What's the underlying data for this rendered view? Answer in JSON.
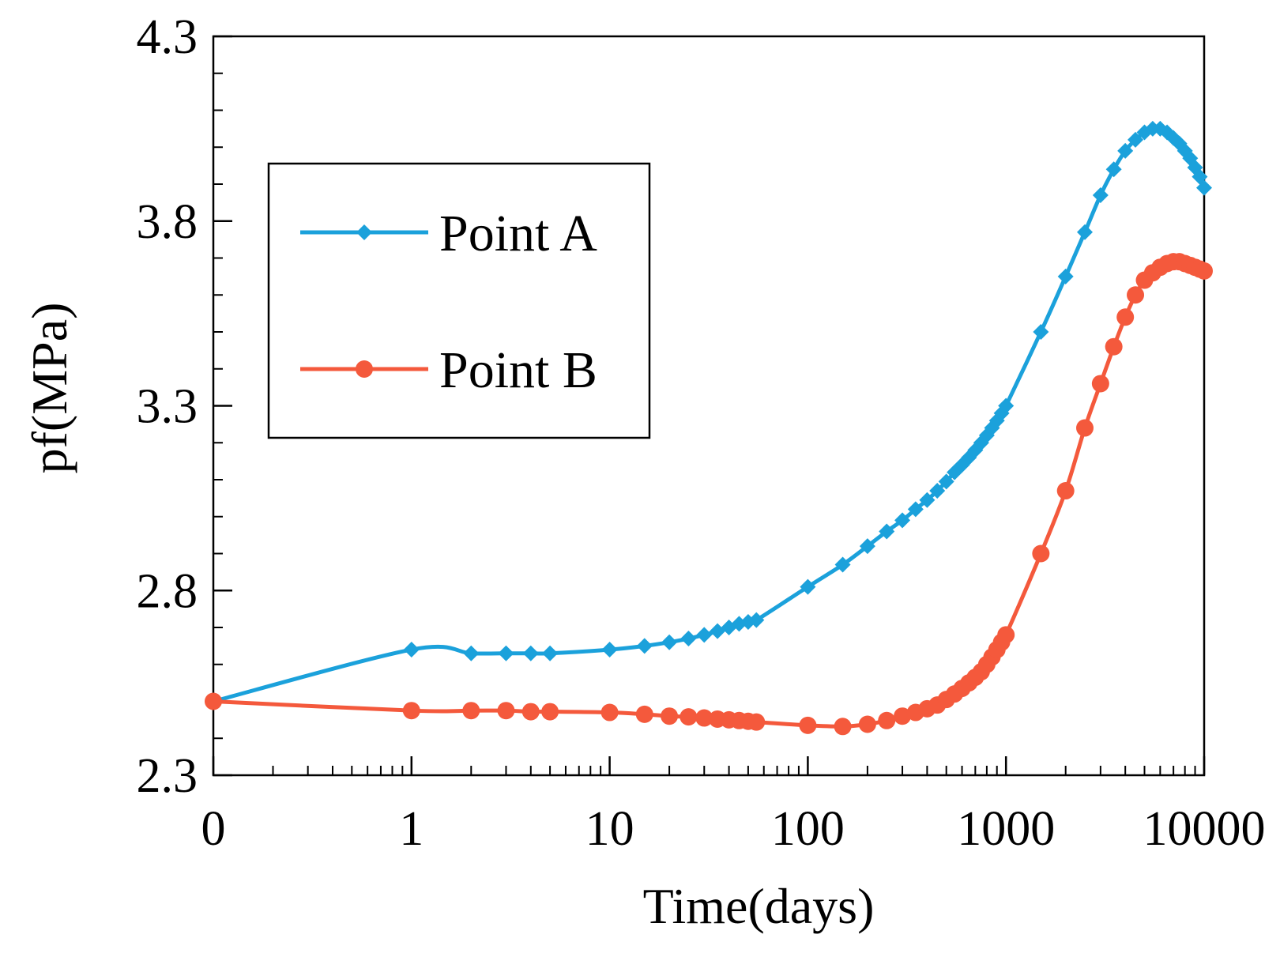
{
  "chart_data": {
    "type": "line",
    "title": "",
    "xlabel": "Time(days)",
    "ylabel": "pf(MPa)",
    "xscale": "log",
    "x_ticks": [
      {
        "value": 0.1,
        "label": "0"
      },
      {
        "value": 1,
        "label": "1"
      },
      {
        "value": 10,
        "label": "10"
      },
      {
        "value": 100,
        "label": "100"
      },
      {
        "value": 1000,
        "label": "1000"
      },
      {
        "value": 10000,
        "label": "10000"
      }
    ],
    "y_ticks": [
      {
        "value": 2.3,
        "label": "2.3"
      },
      {
        "value": 2.8,
        "label": "2.8"
      },
      {
        "value": 3.3,
        "label": "3.3"
      },
      {
        "value": 3.8,
        "label": "3.8"
      },
      {
        "value": 4.3,
        "label": "4.3"
      }
    ],
    "xlim": [
      0.1,
      10000
    ],
    "ylim": [
      2.3,
      4.3
    ],
    "legend": {
      "position": "upper-left"
    },
    "series": [
      {
        "name": "Point A",
        "color": "#1ba1db",
        "marker": "diamond",
        "x": [
          0.1,
          1,
          2,
          3,
          4,
          5,
          10,
          15,
          20,
          25,
          30,
          35,
          40,
          45,
          50,
          55,
          100,
          150,
          200,
          250,
          300,
          350,
          400,
          450,
          500,
          550,
          600,
          650,
          700,
          750,
          800,
          850,
          900,
          950,
          1000,
          1500,
          2000,
          2500,
          3000,
          3500,
          4000,
          4500,
          5000,
          5500,
          6000,
          6500,
          7000,
          7500,
          8000,
          8500,
          9000,
          9500,
          10000
        ],
        "y": [
          2.5,
          2.64,
          2.63,
          2.63,
          2.63,
          2.63,
          2.64,
          2.65,
          2.66,
          2.67,
          2.68,
          2.69,
          2.7,
          2.71,
          2.715,
          2.72,
          2.81,
          2.87,
          2.92,
          2.96,
          2.99,
          3.02,
          3.045,
          3.07,
          3.095,
          3.12,
          3.14,
          3.16,
          3.18,
          3.2,
          3.22,
          3.24,
          3.26,
          3.28,
          3.3,
          3.5,
          3.65,
          3.77,
          3.87,
          3.94,
          3.99,
          4.02,
          4.04,
          4.05,
          4.05,
          4.04,
          4.025,
          4.01,
          3.99,
          3.97,
          3.945,
          3.92,
          3.89
        ]
      },
      {
        "name": "Point B",
        "color": "#f4593c",
        "marker": "circle",
        "x": [
          0.1,
          1,
          2,
          3,
          4,
          5,
          10,
          15,
          20,
          25,
          30,
          35,
          40,
          45,
          50,
          55,
          100,
          150,
          200,
          250,
          300,
          350,
          400,
          450,
          500,
          550,
          600,
          650,
          700,
          750,
          800,
          850,
          900,
          950,
          1000,
          1500,
          2000,
          2500,
          3000,
          3500,
          4000,
          4500,
          5000,
          5500,
          6000,
          6500,
          7000,
          7500,
          8000,
          8500,
          9000,
          9500,
          10000
        ],
        "y": [
          2.5,
          2.475,
          2.475,
          2.475,
          2.472,
          2.472,
          2.47,
          2.465,
          2.46,
          2.458,
          2.455,
          2.452,
          2.45,
          2.448,
          2.446,
          2.444,
          2.435,
          2.432,
          2.438,
          2.448,
          2.46,
          2.47,
          2.48,
          2.49,
          2.505,
          2.52,
          2.535,
          2.55,
          2.565,
          2.58,
          2.6,
          2.62,
          2.64,
          2.66,
          2.68,
          2.9,
          3.07,
          3.24,
          3.36,
          3.46,
          3.54,
          3.6,
          3.64,
          3.66,
          3.675,
          3.685,
          3.69,
          3.69,
          3.685,
          3.68,
          3.675,
          3.67,
          3.665
        ]
      }
    ]
  }
}
